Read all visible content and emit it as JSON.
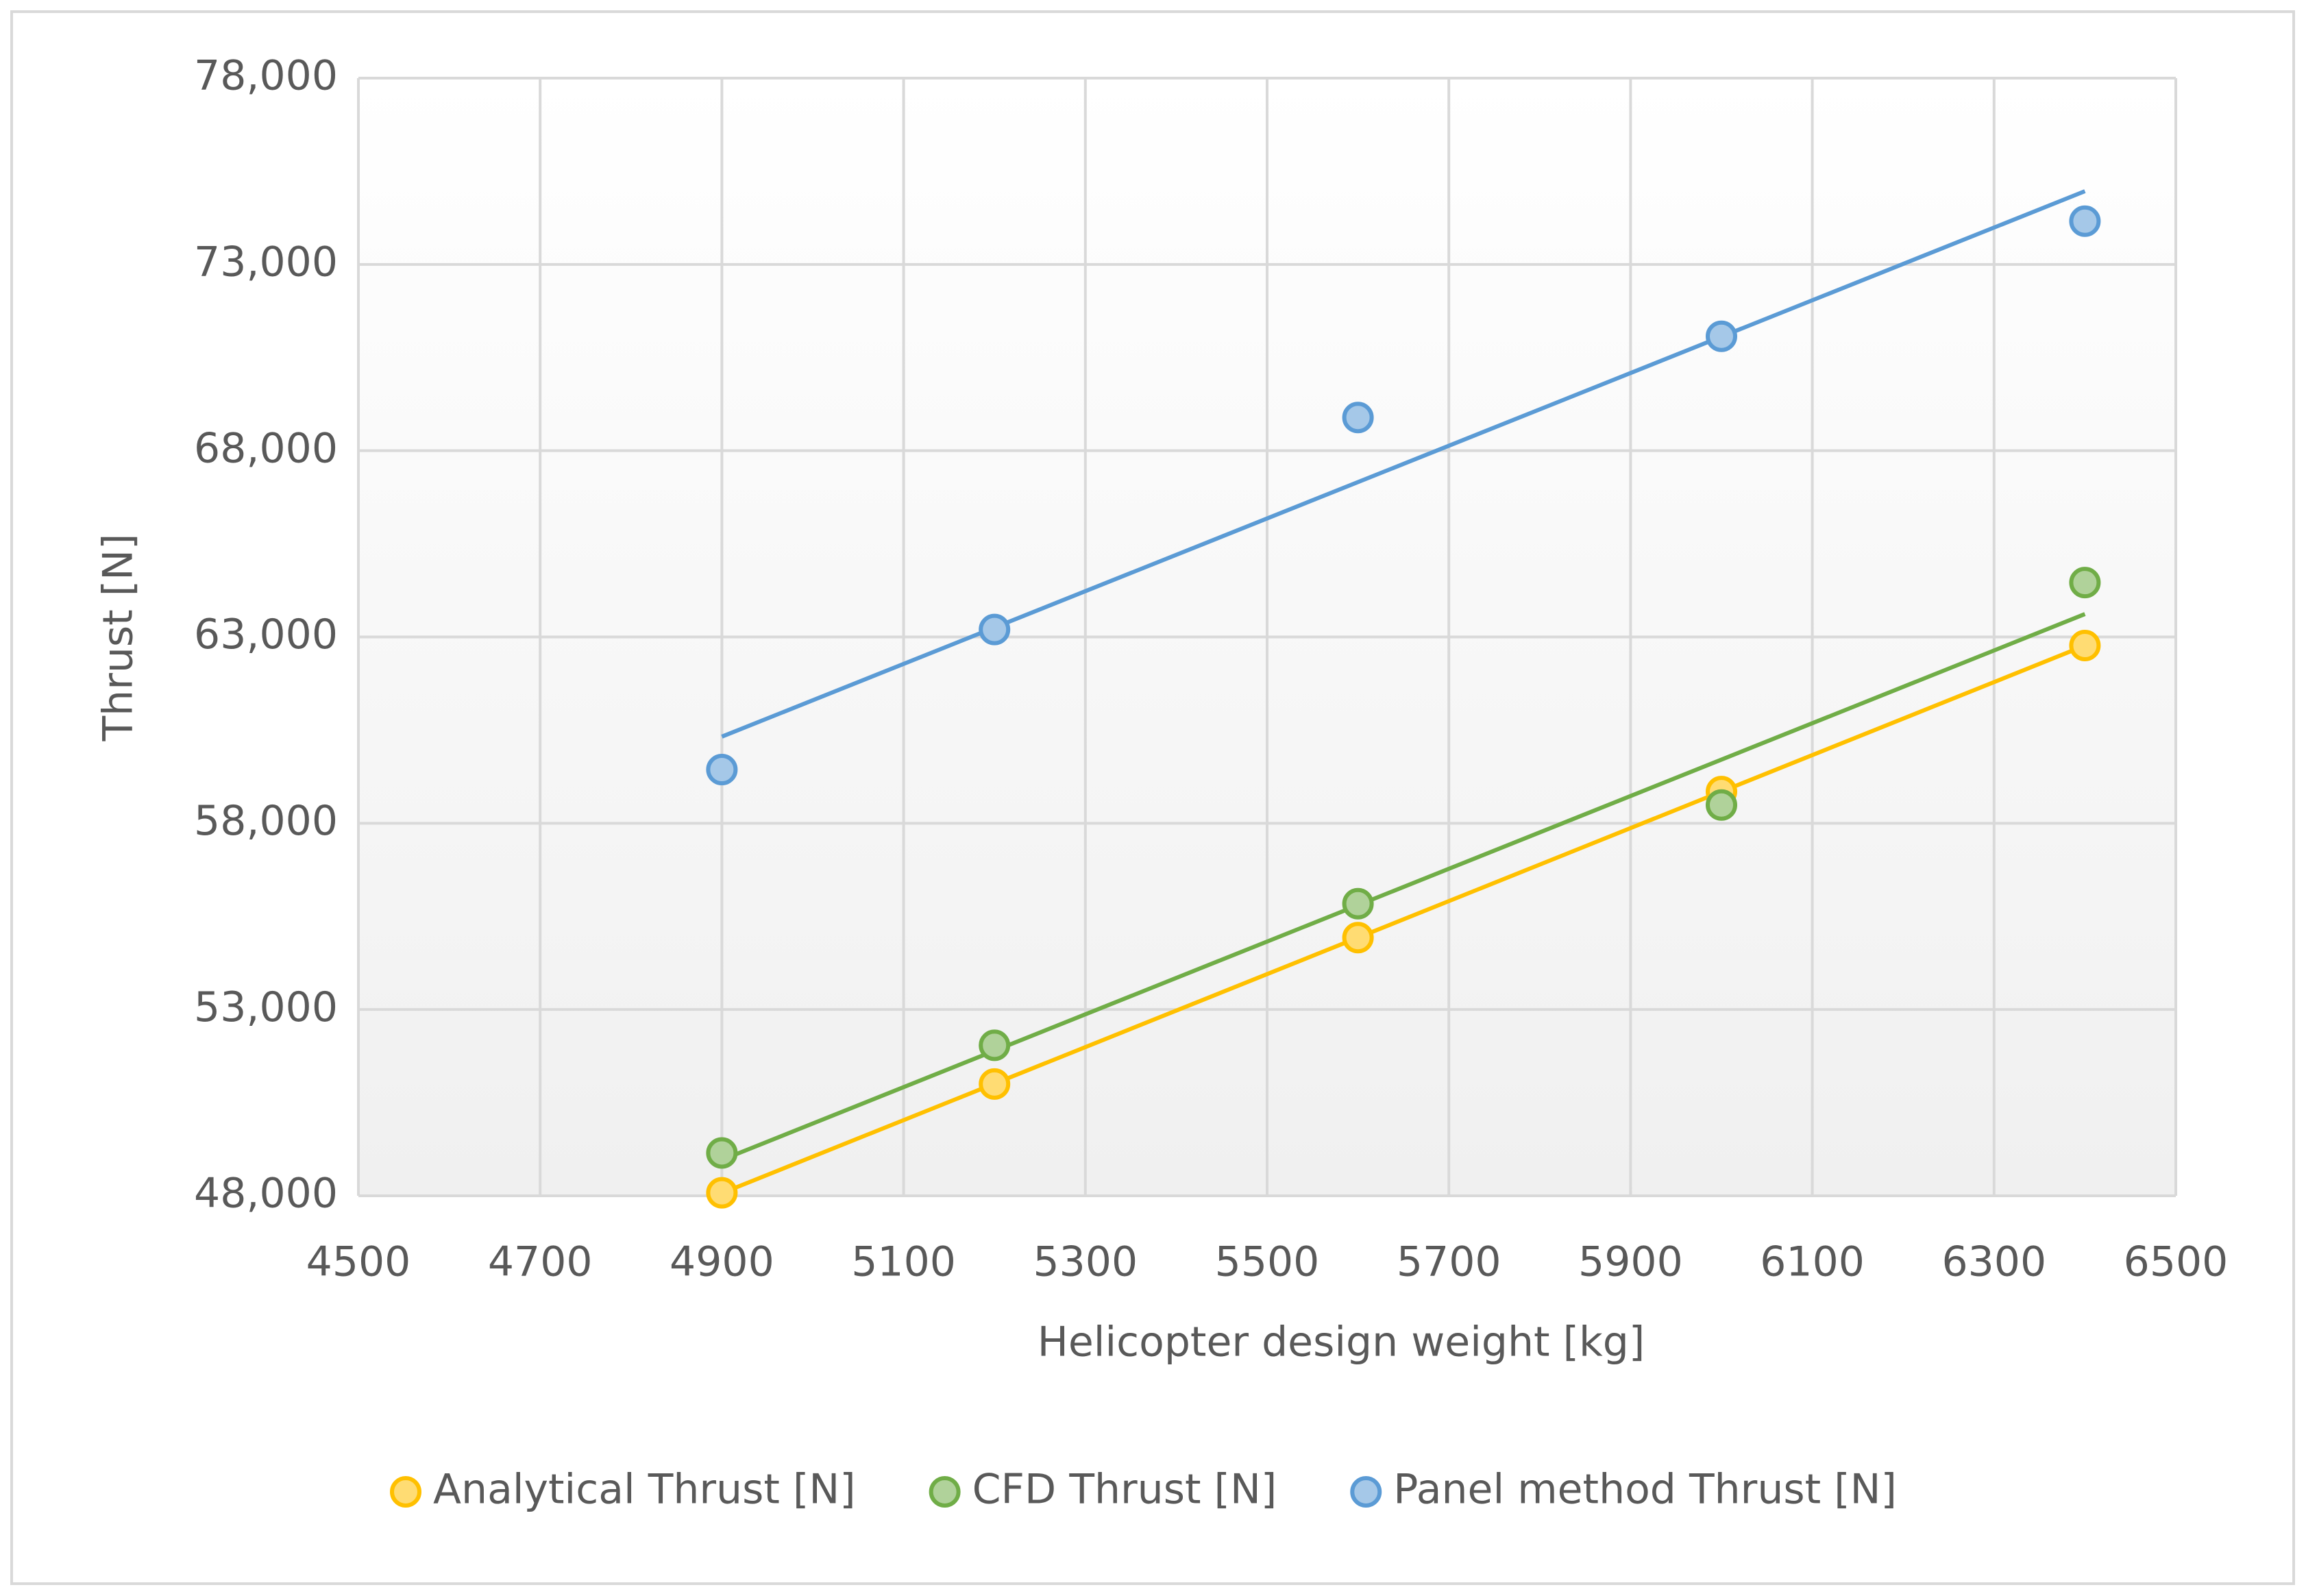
{
  "chart_data": {
    "type": "scatter",
    "x_label": "Helicopter design weight [kg]",
    "y_label": "Thrust [N]",
    "x": [
      4900,
      5200,
      5600,
      6000,
      6400
    ],
    "series": [
      {
        "name": "Analytical Thrust [N]",
        "color": "#FFC000",
        "values": [
          48080,
          51000,
          54930,
          58850,
          62770
        ]
      },
      {
        "name": "CFD Thrust [N]",
        "color": "#70AD47",
        "values": [
          49150,
          52040,
          55840,
          58490,
          64460
        ]
      },
      {
        "name": "Panel method Thrust [N]",
        "color": "#5B9BD5",
        "values": [
          59440,
          63200,
          68890,
          71070,
          74160
        ]
      }
    ],
    "trendline": "linear",
    "xlim": [
      4500,
      6500
    ],
    "xticks": [
      4500,
      4700,
      4900,
      5100,
      5300,
      5500,
      5700,
      5900,
      6100,
      6300,
      6500
    ],
    "ylim": [
      48000,
      78000
    ],
    "yticks": [
      {
        "value": 48000,
        "label": "48,000"
      },
      {
        "value": 53000,
        "label": "53,000"
      },
      {
        "value": 58000,
        "label": "58,000"
      },
      {
        "value": 63000,
        "label": "63,000"
      },
      {
        "value": 68000,
        "label": "68,000"
      },
      {
        "value": 73000,
        "label": "73,000"
      },
      {
        "value": 78000,
        "label": "78,000"
      }
    ],
    "grid": true,
    "legend": "bottom"
  }
}
